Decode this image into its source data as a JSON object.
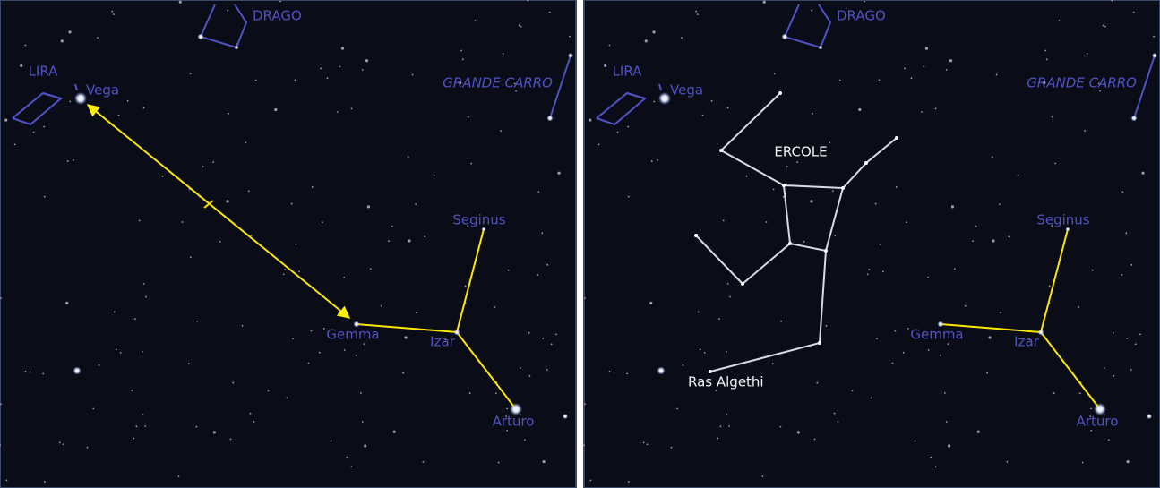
{
  "panels": [
    {
      "labels": [
        "DRAGO",
        "LIRA",
        "Vega",
        "GRANDE CARRO",
        "Seginus",
        "Gemma",
        "Izar",
        "Arturo"
      ]
    },
    {
      "labels": [
        "DRAGO",
        "LIRA",
        "Vega",
        "GRANDE CARRO",
        "Seginus",
        "Gemma",
        "Izar",
        "Arturo",
        "ERCOLE",
        "Ras Algethi"
      ]
    }
  ]
}
